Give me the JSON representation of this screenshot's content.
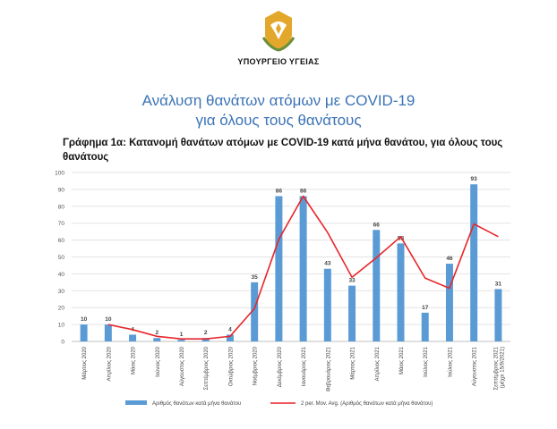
{
  "header": {
    "ministry": "ΥΠΟΥΡΓΕΙΟ ΥΓΕΙΑΣ",
    "title_line1": "Ανάλυση θανάτων ατόμων με COVID-19",
    "title_line2": "για όλους τους θανάτους",
    "emblem_icon": "cyprus-coat-of-arms-icon"
  },
  "chart_data": {
    "type": "bar",
    "title": "Γράφημα 1α: Κατανομή θανάτων ατόμων με COVID-19 κατά μήνα θανάτου, για όλους τους θανάτους",
    "categories": [
      "Μάρτιος 2020",
      "Απρίλιος 2020",
      "Μάιος 2020",
      "Ιούνιος 2020",
      "Αύγουστος 2020",
      "Σεπτέμβριος 2020",
      "Οκτώβριος 2020",
      "Νοέμβριος 2020",
      "Δεκέμβριος 2020",
      "Ιανουάριος 2021",
      "Φεβρουάριος 2021",
      "Μάρτιος 2021",
      "Απρίλιος 2021",
      "Μάιος 2021",
      "Ιούλιος 2021",
      "Ιούλιος 2021",
      "Αύγουστος 2021",
      "Σεπτέμβριος 2021 (μέχρι 15/9/2021)"
    ],
    "series": [
      {
        "name": "Αριθμός θανάτων κατά μήνα θανάτου",
        "kind": "bar",
        "color": "#5b9bd5",
        "values": [
          10,
          10,
          4,
          2,
          1,
          2,
          4,
          35,
          86,
          86,
          43,
          33,
          66,
          58,
          17,
          46,
          93,
          31
        ]
      },
      {
        "name": "2 per. Mov. Avg. (Αριθμός θανάτων κατά μήνα θανάτου)",
        "kind": "line",
        "color": "#e8262a",
        "values": [
          null,
          10,
          7,
          3,
          1.5,
          1.5,
          3,
          19.5,
          60.5,
          86,
          64.5,
          38,
          49.5,
          62,
          37.5,
          31.5,
          69.5,
          62
        ]
      }
    ],
    "ylim": [
      0,
      100
    ],
    "yticks": [
      0,
      10,
      20,
      30,
      40,
      50,
      60,
      70,
      80,
      90,
      100
    ],
    "grid": true,
    "legend_position": "bottom"
  }
}
